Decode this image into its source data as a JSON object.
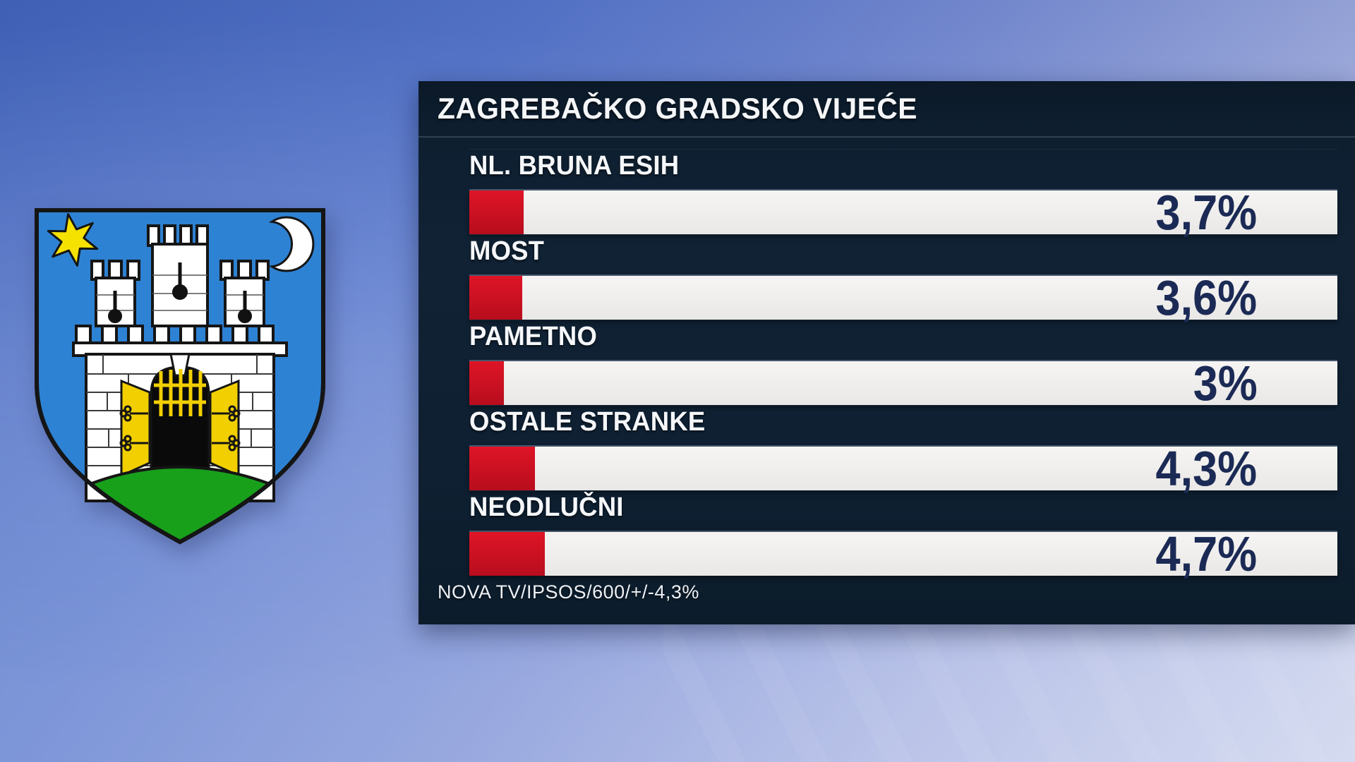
{
  "header": {
    "title": "ZAGREBAČKO GRADSKO VIJEĆE"
  },
  "footer": {
    "source": "NOVA TV/IPSOS/600/+/-4,3%"
  },
  "chart_data": {
    "type": "bar",
    "orientation": "horizontal",
    "title": "ZAGREBAČKO GRADSKO VIJEĆE",
    "categories": [
      "NL. BRUNA ESIH",
      "MOST",
      "PAMETNO",
      "OSTALE STRANKE",
      "NEODLUČNI"
    ],
    "values": [
      3.7,
      3.6,
      3.0,
      4.3,
      4.7
    ],
    "value_labels": [
      "3,7%",
      "3,6%",
      "3%",
      "4,3%",
      "4,7%"
    ],
    "bar_pixel_fractions": [
      0.063,
      0.061,
      0.04,
      0.076,
      0.087
    ],
    "xlim": [
      0,
      60
    ],
    "source": "NOVA TV/IPSOS/600/+/-4,3%",
    "legend": "none",
    "grid": false
  },
  "colors": {
    "background_top": "#4466bd",
    "background_bottom": "#c9d1ec",
    "panel_bg": "#0e2032",
    "panel_title_bg": "#0c1a29",
    "bar_track": "#f1f0ee",
    "bar_fill_red": "#cf1022",
    "value_navy": "#1b2a55",
    "label_white": "#f5f7fa",
    "shield_blue": "#2e82d3",
    "star_yellow": "#f6e200",
    "moon_white": "#ffffff",
    "castle_white": "#ffffff",
    "hill_green": "#18a01b",
    "door_yellow": "#f2cf00",
    "outline_black": "#151515"
  }
}
